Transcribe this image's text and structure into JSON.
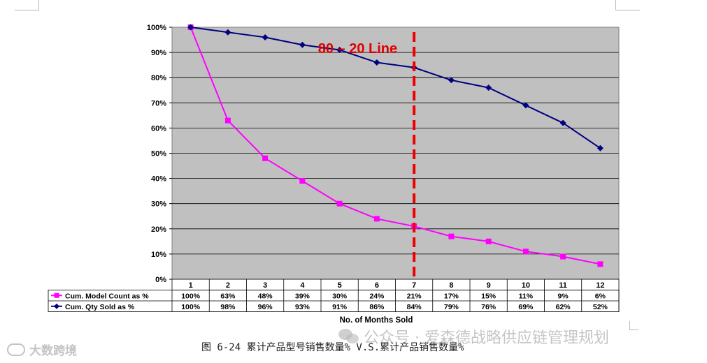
{
  "chart_data": {
    "type": "line",
    "categories": [
      "1",
      "2",
      "3",
      "4",
      "5",
      "6",
      "7",
      "8",
      "9",
      "10",
      "11",
      "12"
    ],
    "series": [
      {
        "name": "Cum. Model Count as %",
        "values": [
          100,
          63,
          48,
          39,
          30,
          24,
          21,
          17,
          15,
          11,
          9,
          6
        ],
        "color": "#ff00ff",
        "marker": "square",
        "labels": [
          "100%",
          "63%",
          "48%",
          "39%",
          "30%",
          "24%",
          "21%",
          "17%",
          "15%",
          "11%",
          "9%",
          "6%"
        ]
      },
      {
        "name": "Cum. Qty Sold as %",
        "values": [
          100,
          98,
          96,
          93,
          91,
          86,
          84,
          79,
          76,
          69,
          62,
          52
        ],
        "color": "#000080",
        "marker": "diamond",
        "labels": [
          "100%",
          "98%",
          "96%",
          "93%",
          "91%",
          "86%",
          "84%",
          "79%",
          "76%",
          "69%",
          "62%",
          "52%"
        ]
      }
    ],
    "xlabel": "No. of Months Sold",
    "ylim": [
      0,
      100
    ],
    "yticks": [
      "0%",
      "10%",
      "20%",
      "30%",
      "40%",
      "50%",
      "60%",
      "70%",
      "80%",
      "90%",
      "100%"
    ],
    "grid": true,
    "legend": "data-table",
    "annotation": {
      "text": "80 – 20 Line",
      "x": 7,
      "color": "#ee0000"
    },
    "plot_background": "#c0c0c0"
  },
  "caption": "图 6-24 累计产品型号销售数量% V.S.累计产品销售数量%",
  "watermark_right": "公众号 · 爱森德战略供应链管理规划",
  "watermark_left": "大数跨境"
}
